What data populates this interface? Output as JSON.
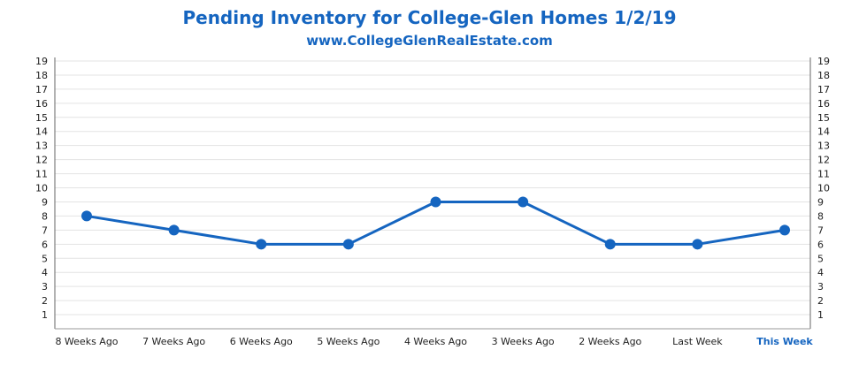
{
  "chart_data": {
    "type": "line",
    "title": "Pending Inventory for College-Glen Homes 1/2/19",
    "subtitle": "www.CollegeGlenRealEstate.com",
    "categories": [
      "8 Weeks Ago",
      "7 Weeks Ago",
      "6 Weeks Ago",
      "5 Weeks Ago",
      "4 Weeks Ago",
      "3 Weeks Ago",
      "2 Weeks Ago",
      "Last Week",
      "This Week"
    ],
    "series": [
      {
        "values": [
          8,
          7,
          6,
          6,
          9,
          9,
          6,
          6,
          7
        ]
      }
    ],
    "ylim": [
      0,
      19
    ],
    "yticks": [
      1,
      2,
      3,
      4,
      5,
      6,
      7,
      8,
      9,
      10,
      11,
      12,
      13,
      14,
      15,
      16,
      17,
      18,
      19
    ],
    "grid": true,
    "line_color": "#1565c0",
    "highlight_category_color": "#1565c0"
  }
}
